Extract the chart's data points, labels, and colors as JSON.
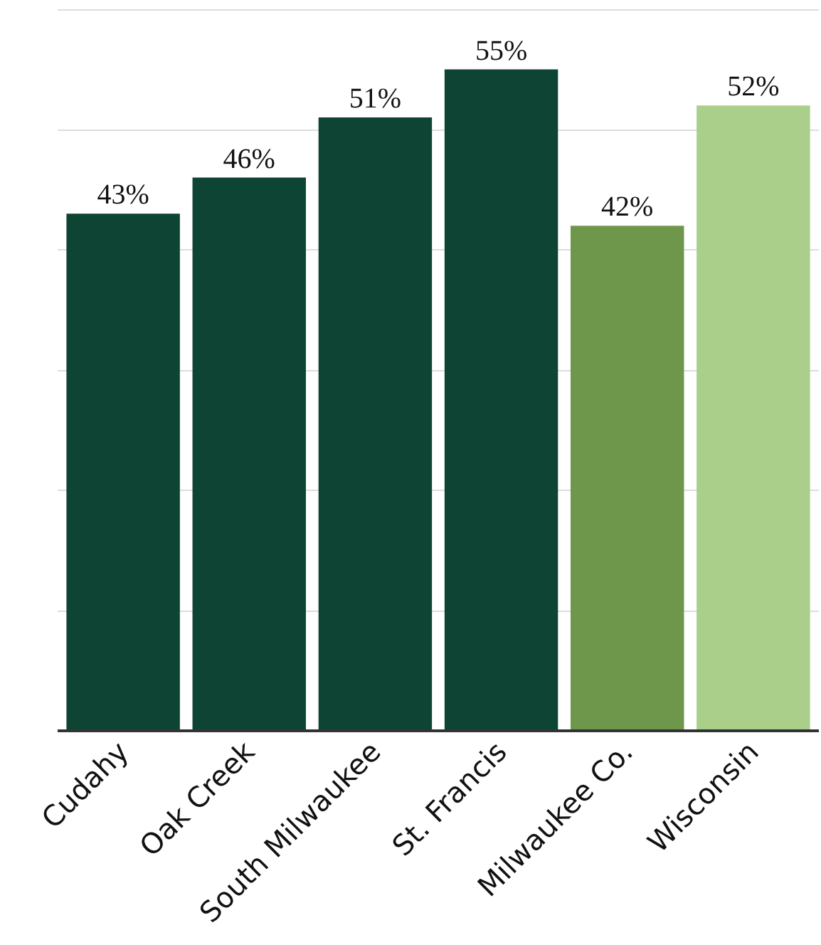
{
  "chart_data": {
    "type": "bar",
    "categories": [
      "Cudahy",
      "Oak Creek",
      "South Milwaukee",
      "St. Francis",
      "Milwaukee Co.",
      "Wisconsin"
    ],
    "values": [
      43,
      46,
      51,
      55,
      42,
      52
    ],
    "colors": [
      "#0d4433",
      "#0d4433",
      "#0d4433",
      "#0d4433",
      "#6e974c",
      "#a9cf8a"
    ],
    "value_labels": [
      "43%",
      "46%",
      "51%",
      "55%",
      "42%",
      "52%"
    ],
    "ylim": [
      0,
      60
    ],
    "yticks": [
      {
        "value": 0,
        "label": null
      },
      {
        "value": 10,
        "label": null
      },
      {
        "value": 20,
        "label": null
      },
      {
        "value": 30,
        "label": null
      },
      {
        "value": 40,
        "label": null
      },
      {
        "value": 50,
        "label": null
      }
    ],
    "grid": "y",
    "tick_labels": "x"
  }
}
